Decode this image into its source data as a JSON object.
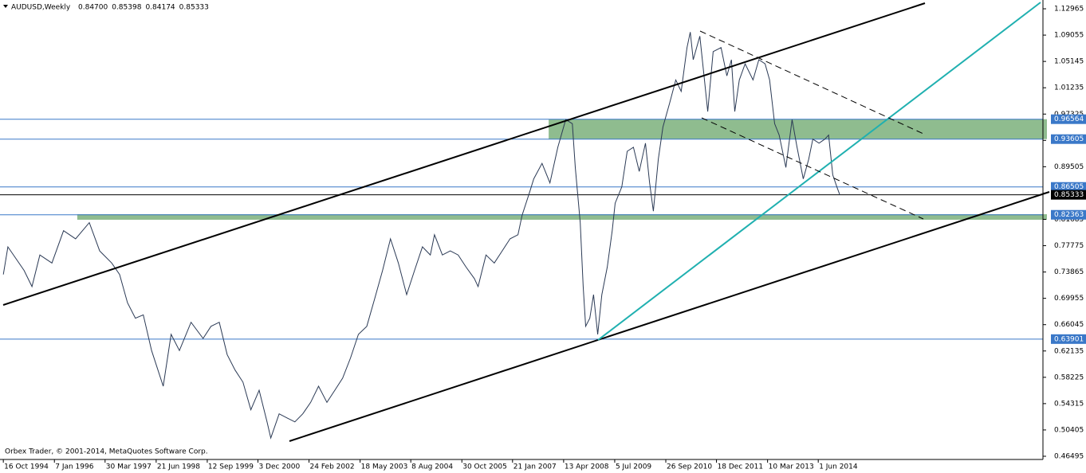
{
  "chart_data": {
    "type": "line",
    "title": "AUDUSD,Weekly",
    "ohlc": [
      "0.84700",
      "0.85398",
      "0.84174",
      "0.85333"
    ],
    "footer": "Orbex Trader, © 2001-2014, MetaQuotes Software Corp.",
    "xlim": [
      1994.71,
      2019.82
    ],
    "ylim": [
      0.4602,
      1.1427
    ],
    "xticks": [
      {
        "value": 1994.79,
        "label": "16 Oct 1994"
      },
      {
        "value": 1996.02,
        "label": "7 Jan 1996"
      },
      {
        "value": 1997.24,
        "label": "30 Mar 1997"
      },
      {
        "value": 1998.47,
        "label": "21 Jun 1998"
      },
      {
        "value": 1999.7,
        "label": "12 Sep 1999"
      },
      {
        "value": 2000.92,
        "label": "3 Dec 2000"
      },
      {
        "value": 2002.15,
        "label": "24 Feb 2002"
      },
      {
        "value": 2003.38,
        "label": "18 May 2003"
      },
      {
        "value": 2004.6,
        "label": "8 Aug 2004"
      },
      {
        "value": 2005.83,
        "label": "30 Oct 2005"
      },
      {
        "value": 2007.05,
        "label": "21 Jan 2007"
      },
      {
        "value": 2008.28,
        "label": "13 Apr 2008"
      },
      {
        "value": 2009.51,
        "label": "5 Jul 2009"
      },
      {
        "value": 2010.74,
        "label": "26 Sep 2010"
      },
      {
        "value": 2011.96,
        "label": "18 Dec 2011"
      },
      {
        "value": 2013.19,
        "label": "10 Mar 2013"
      },
      {
        "value": 2014.41,
        "label": "1 Jun 2014"
      }
    ],
    "yticks": [
      1.12965,
      1.09055,
      1.05145,
      1.01235,
      0.97325,
      0.93415,
      0.89505,
      0.85595,
      0.81685,
      0.77775,
      0.73865,
      0.69955,
      0.66045,
      0.62135,
      0.58225,
      0.54315,
      0.50405,
      0.46495
    ],
    "levels": [
      {
        "value": 0.96564,
        "color": "#3a78c8"
      },
      {
        "value": 0.93605,
        "color": "#3a78c8"
      },
      {
        "value": 0.86505,
        "color": "#3a78c8"
      },
      {
        "value": 0.85333,
        "color": "#000000"
      },
      {
        "value": 0.82363,
        "color": "#3a78c8"
      },
      {
        "value": 0.63901,
        "color": "#3a78c8"
      }
    ],
    "zones": [
      {
        "from": 0.93605,
        "to": 0.96564,
        "start": 2007.92,
        "color": "#8fbc8f"
      },
      {
        "from": 0.8163,
        "to": 0.8245,
        "start": 1996.57,
        "color": "#8fbc8f"
      }
    ],
    "series": [
      {
        "name": "AUDUSD",
        "color": "#2b3a55",
        "x": [
          1994.79,
          1994.9,
          1995.29,
          1995.48,
          1995.67,
          1995.96,
          1996.24,
          1996.53,
          1996.86,
          1997.11,
          1997.4,
          1997.59,
          1997.78,
          1997.97,
          1998.16,
          1998.36,
          1998.64,
          1998.83,
          1999.03,
          1999.31,
          1999.6,
          1999.79,
          1999.99,
          2000.18,
          2000.37,
          2000.56,
          2000.75,
          2000.95,
          2001.14,
          2001.23,
          2001.43,
          2001.62,
          2001.81,
          2002.0,
          2002.19,
          2002.38,
          2002.58,
          2002.77,
          2002.96,
          2003.15,
          2003.34,
          2003.54,
          2003.73,
          2003.92,
          2004.11,
          2004.3,
          2004.5,
          2004.69,
          2004.88,
          2005.07,
          2005.17,
          2005.36,
          2005.55,
          2005.74,
          2005.93,
          2006.13,
          2006.22,
          2006.41,
          2006.61,
          2006.8,
          2006.99,
          2007.18,
          2007.28,
          2007.47,
          2007.56,
          2007.76,
          2007.95,
          2008.14,
          2008.33,
          2008.49,
          2008.56,
          2008.68,
          2008.75,
          2008.81,
          2008.91,
          2009.0,
          2009.1,
          2009.2,
          2009.33,
          2009.45,
          2009.52,
          2009.68,
          2009.81,
          2009.96,
          2010.1,
          2010.25,
          2010.35,
          2010.44,
          2010.56,
          2010.67,
          2010.83,
          2010.98,
          2011.11,
          2011.25,
          2011.33,
          2011.4,
          2011.56,
          2011.67,
          2011.75,
          2011.88,
          2012.07,
          2012.21,
          2012.32,
          2012.4,
          2012.51,
          2012.65,
          2012.84,
          2012.98,
          2013.13,
          2013.24,
          2013.36,
          2013.47,
          2013.63,
          2013.78,
          2013.9,
          2014.05,
          2014.18,
          2014.28,
          2014.43,
          2014.57,
          2014.66,
          2014.76,
          2014.86,
          2014.93
        ],
        "values": [
          0.735,
          0.776,
          0.741,
          0.717,
          0.764,
          0.752,
          0.8,
          0.788,
          0.812,
          0.77,
          0.752,
          0.735,
          0.693,
          0.67,
          0.675,
          0.622,
          0.569,
          0.646,
          0.622,
          0.664,
          0.64,
          0.658,
          0.664,
          0.616,
          0.593,
          0.575,
          0.534,
          0.563,
          0.516,
          0.492,
          0.528,
          0.522,
          0.516,
          0.528,
          0.545,
          0.569,
          0.545,
          0.563,
          0.581,
          0.611,
          0.646,
          0.658,
          0.699,
          0.741,
          0.788,
          0.752,
          0.705,
          0.741,
          0.776,
          0.764,
          0.794,
          0.764,
          0.77,
          0.764,
          0.746,
          0.729,
          0.717,
          0.764,
          0.752,
          0.77,
          0.788,
          0.794,
          0.823,
          0.859,
          0.877,
          0.9,
          0.871,
          0.924,
          0.965,
          0.959,
          0.894,
          0.812,
          0.717,
          0.658,
          0.67,
          0.705,
          0.646,
          0.705,
          0.746,
          0.8,
          0.841,
          0.865,
          0.918,
          0.924,
          0.888,
          0.93,
          0.871,
          0.829,
          0.906,
          0.954,
          0.989,
          1.024,
          1.007,
          1.072,
          1.095,
          1.054,
          1.089,
          1.024,
          0.977,
          1.066,
          1.072,
          1.03,
          1.054,
          0.977,
          1.024,
          1.048,
          1.024,
          1.054,
          1.048,
          1.024,
          0.959,
          0.942,
          0.894,
          0.965,
          0.924,
          0.877,
          0.906,
          0.936,
          0.93,
          0.936,
          0.942,
          0.883,
          0.865,
          0.853
        ]
      }
    ]
  }
}
